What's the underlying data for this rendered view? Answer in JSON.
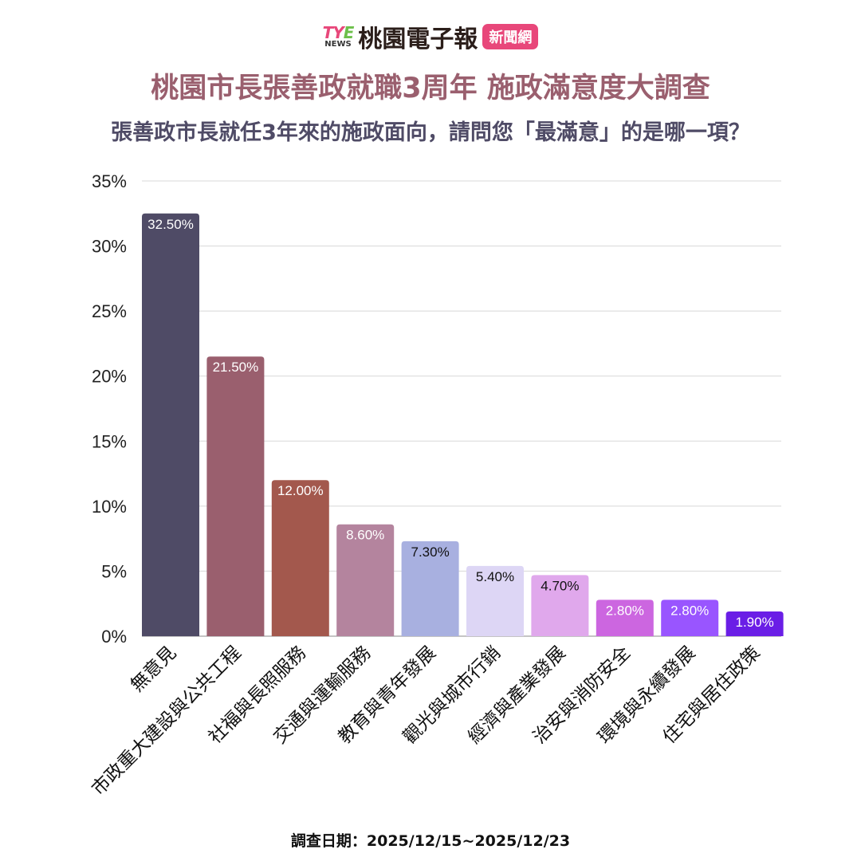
{
  "header": {
    "logo_text": "TYE NEWS",
    "brand": "桃園電子報",
    "badge": "新聞網"
  },
  "title": "桃園市長張善政就職3周年  施政滿意度大調查",
  "subtitle": "張善政市長就任3年來的施政面向，請問您「最滿意」的是哪一項？",
  "footer": "調查日期：2025/12/15~2025/12/23",
  "chart_data": {
    "type": "bar",
    "title": "桃園市長張善政就職3周年  施政滿意度大調查",
    "categories": [
      "無意見",
      "市政重大建設與公共工程",
      "社福與長照服務",
      "交通與運輸服務",
      "教育與青年發展",
      "觀光與城市行銷",
      "經濟與產業發展",
      "治安與消防安全",
      "環境與永續發展",
      "住宅與居住政策"
    ],
    "values": [
      32.5,
      21.5,
      12.0,
      8.6,
      7.3,
      5.4,
      4.7,
      2.8,
      2.8,
      1.9
    ],
    "data_labels": [
      "32.50%",
      "21.50%",
      "12.00%",
      "8.60%",
      "7.30%",
      "5.40%",
      "4.70%",
      "2.80%",
      "2.80%",
      "1.90%"
    ],
    "colors": [
      "#4f4b66",
      "#9a5f6e",
      "#a3584d",
      "#b4849e",
      "#a8b0e0",
      "#ddd6f5",
      "#e0a8ec",
      "#cc66e0",
      "#9955ff",
      "#6a1ee6"
    ],
    "label_colors": [
      "#ffffff",
      "#ffffff",
      "#ffffff",
      "#ffffff",
      "#111111",
      "#111111",
      "#111111",
      "#ffffff",
      "#ffffff",
      "#ffffff"
    ],
    "yticks": [
      "0%",
      "5%",
      "10%",
      "15%",
      "20%",
      "25%",
      "30%",
      "35%"
    ],
    "ylim": [
      0,
      35
    ],
    "grid": true,
    "xlabel": "",
    "ylabel": ""
  }
}
